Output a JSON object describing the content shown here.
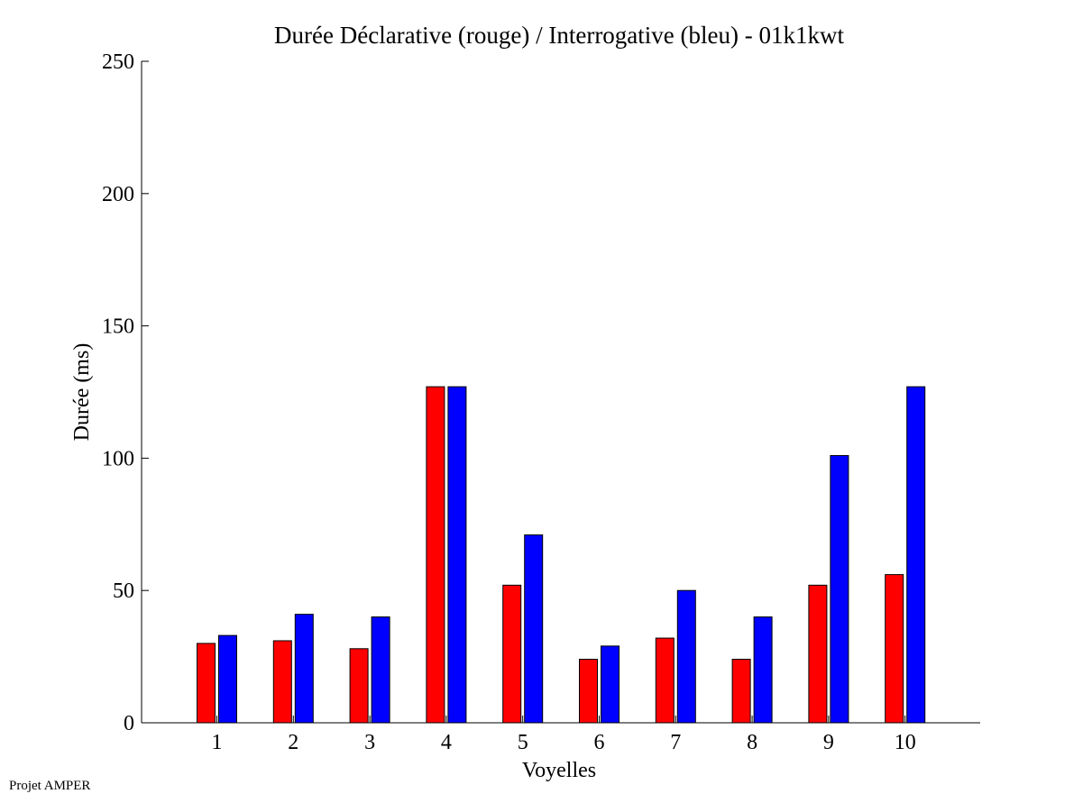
{
  "footer": {
    "label": "Projet AMPER"
  },
  "chart_data": {
    "type": "bar",
    "title": "Durée Déclarative (rouge) / Interrogative (bleu) - 01k1kwt",
    "xlabel": "Voyelles",
    "ylabel": "Durée (ms)",
    "ylim": [
      0,
      250
    ],
    "yticks": [
      0,
      50,
      100,
      150,
      200,
      250
    ],
    "categories": [
      "1",
      "2",
      "3",
      "4",
      "5",
      "6",
      "7",
      "8",
      "9",
      "10"
    ],
    "series": [
      {
        "color": "#ff0000",
        "values": [
          30,
          31,
          28,
          127,
          52,
          24,
          32,
          24,
          52,
          56
        ]
      },
      {
        "color": "#0000ff",
        "values": [
          33,
          41,
          40,
          127,
          71,
          29,
          50,
          40,
          101,
          127
        ]
      }
    ],
    "grid": false,
    "legend": "none"
  }
}
